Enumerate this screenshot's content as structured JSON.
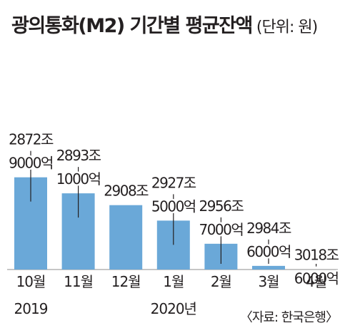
{
  "chart_data": {
    "type": "bar",
    "title": "광의통화(M2) 기간별 평균잔액",
    "unit_note": "(단위: 원)",
    "categories": [
      "10월",
      "11월",
      "12월",
      "1월",
      "2월",
      "3월",
      "4월"
    ],
    "year_labels": [
      {
        "category_index": 0,
        "text": "2019"
      },
      {
        "category_index": 3,
        "text": "2020년"
      }
    ],
    "values": [
      2872.9,
      2893.1,
      2908.0,
      2927.5,
      2956.7,
      2984.6,
      3018.6
    ],
    "value_labels": [
      [
        "2872조",
        "9000억"
      ],
      [
        "2893조",
        "1000억"
      ],
      [
        "2908조"
      ],
      [
        "2927조",
        "5000억"
      ],
      [
        "2956조",
        "7000억"
      ],
      [
        "2984조",
        "6000억"
      ],
      [
        "3018조",
        "6000억"
      ]
    ],
    "value_unit": "조원",
    "source": "〈자료: 한국은행〉",
    "bar_color": "#6aa8d8",
    "grid": false,
    "legend": "none"
  }
}
